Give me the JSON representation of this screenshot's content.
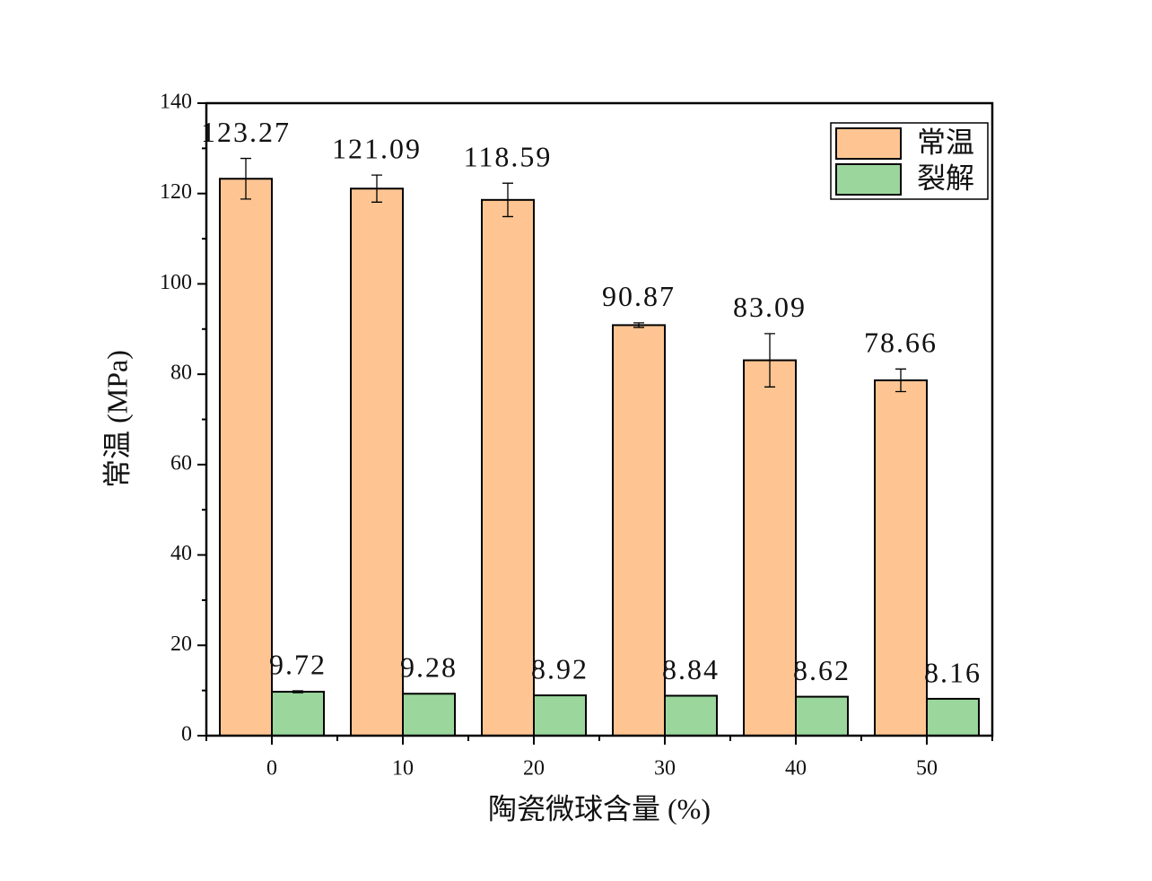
{
  "chart_data": {
    "type": "bar",
    "xlabel": "陶瓷微球含量 (%)",
    "ylabel": "常温 (MPa)",
    "categories": [
      "0",
      "10",
      "20",
      "30",
      "40",
      "50"
    ],
    "series": [
      {
        "name": "常温",
        "color": "#fec593",
        "values": [
          123.27,
          121.09,
          118.59,
          90.87,
          83.09,
          78.66
        ],
        "errors": [
          4.5,
          3.0,
          3.7,
          0.5,
          5.9,
          2.5
        ]
      },
      {
        "name": "裂解",
        "color": "#9bd79d",
        "values": [
          9.72,
          9.28,
          8.92,
          8.84,
          8.62,
          8.16
        ],
        "errors": [
          0.2,
          null,
          null,
          null,
          null,
          null
        ]
      }
    ],
    "ylim": [
      0,
      140
    ],
    "yticks": [
      0,
      20,
      40,
      60,
      80,
      100,
      120,
      140
    ],
    "legend": "upper right"
  }
}
